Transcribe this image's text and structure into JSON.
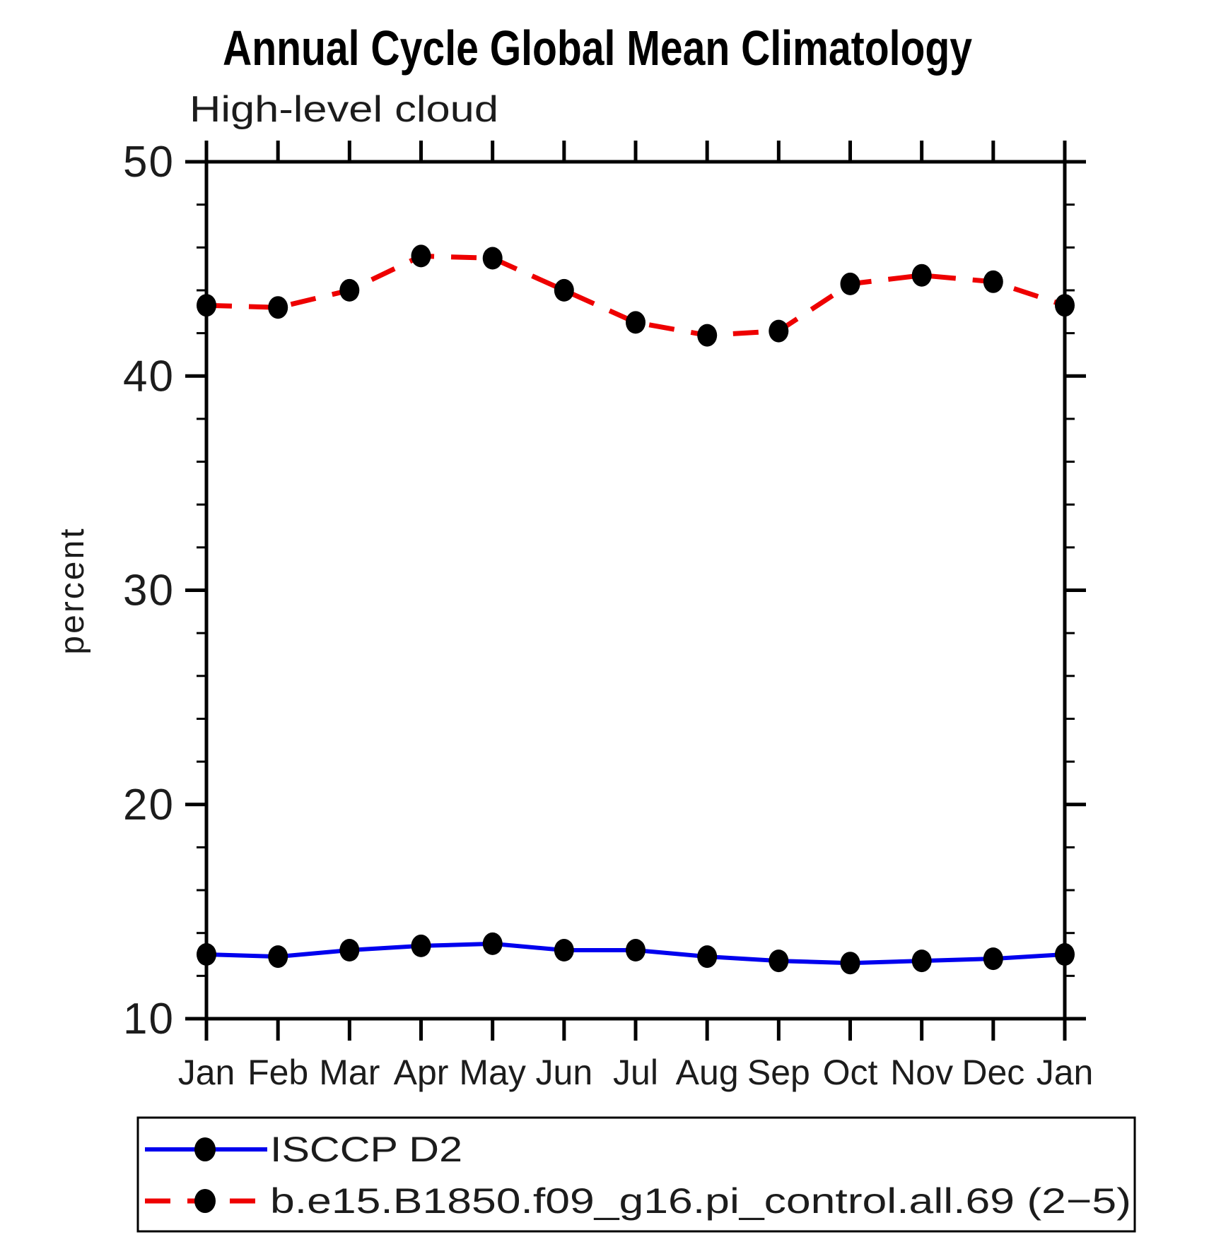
{
  "chart_data": {
    "type": "line",
    "title": "Annual Cycle Global Mean Climatology",
    "subtitle": "High-level cloud",
    "xlabel": "",
    "ylabel": "percent",
    "ylim": [
      10,
      50
    ],
    "y_major_ticks": [
      10,
      20,
      30,
      40,
      50
    ],
    "y_minor_step": 2,
    "grid": false,
    "legend_position": "bottom",
    "categories": [
      "Jan",
      "Feb",
      "Mar",
      "Apr",
      "May",
      "Jun",
      "Jul",
      "Aug",
      "Sep",
      "Oct",
      "Nov",
      "Dec",
      "Jan"
    ],
    "series": [
      {
        "name": "ISCCP D2",
        "color": "#0000ee",
        "style": "solid",
        "marker": "filled-circle",
        "marker_color": "#000000",
        "values": [
          13.0,
          12.9,
          13.2,
          13.4,
          13.5,
          13.2,
          13.2,
          12.9,
          12.7,
          12.6,
          12.7,
          12.8,
          13.0
        ]
      },
      {
        "name": "b.e15.B1850.f09_g16.pi_control.all.69 (2−5)",
        "color": "#ee0000",
        "style": "dashed",
        "marker": "filled-circle",
        "marker_color": "#000000",
        "values": [
          43.3,
          43.2,
          44.0,
          45.6,
          45.5,
          44.0,
          42.5,
          41.9,
          42.1,
          44.3,
          44.7,
          44.4,
          43.3
        ]
      }
    ]
  }
}
